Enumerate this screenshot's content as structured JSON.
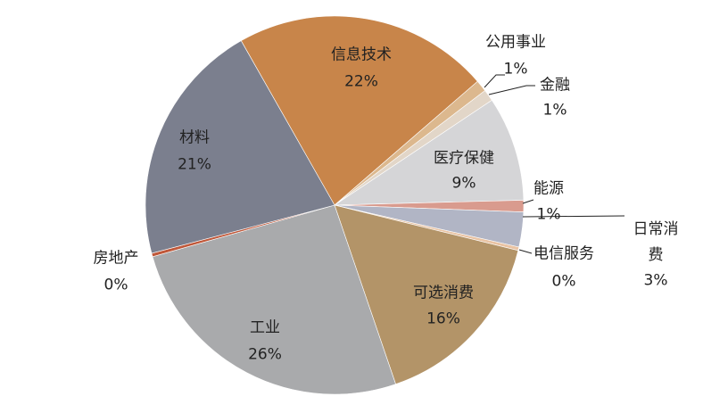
{
  "chart_data": {
    "type": "pie",
    "categories": [
      "信息技术",
      "公用事业",
      "金融",
      "医疗保健",
      "能源",
      "日常消费",
      "电信服务",
      "可选消费",
      "工业",
      "房地产",
      "材料"
    ],
    "values": [
      22,
      1,
      1,
      9,
      1,
      3,
      0.3,
      16,
      26,
      0.3,
      21
    ],
    "value_labels": [
      "22%",
      "1%",
      "1%",
      "9%",
      "1%",
      "3%",
      "0%",
      "16%",
      "26%",
      "0%",
      "21%"
    ],
    "colors": [
      "#c8854a",
      "#dcb88e",
      "#e2d6c8",
      "#d5d5d7",
      "#d99b8e",
      "#b1b5c5",
      "#e9c3a3",
      "#b39468",
      "#a9aaac",
      "#c0583a",
      "#7b7f8e"
    ]
  }
}
